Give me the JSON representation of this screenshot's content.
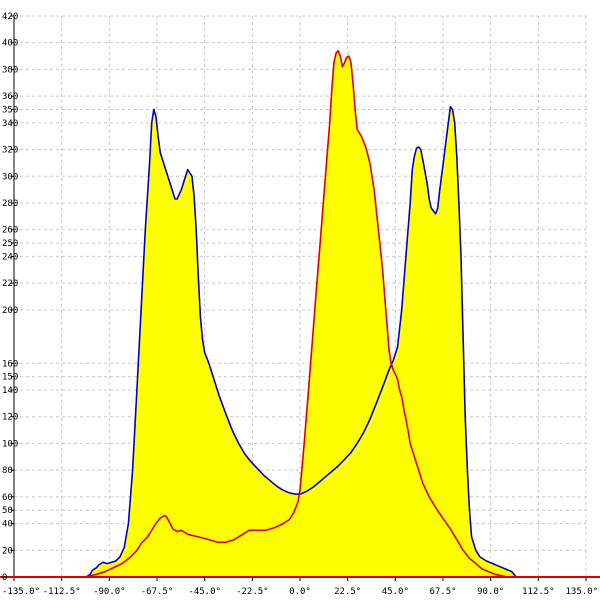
{
  "chart_data": {
    "type": "area",
    "title": "",
    "xlabel": "",
    "ylabel": "",
    "xlim": [
      -135,
      135
    ],
    "ylim": [
      0,
      420
    ],
    "grid": true,
    "x_ticks": [
      -135,
      -112.5,
      -90,
      -67.5,
      -45,
      -22.5,
      0,
      22.5,
      45,
      67.5,
      90,
      112.5,
      135
    ],
    "x_tick_labels": [
      "-135.0°",
      "-112.5°",
      "-90.0°",
      "-67.5°",
      "-45.0°",
      "-22.5°",
      "0.0°",
      "22.5°",
      "45.0°",
      "67.5°",
      "90.0°",
      "112.5°",
      "135.0°"
    ],
    "y_ticks": [
      20,
      40,
      50,
      60,
      80,
      100,
      120,
      140,
      150,
      160,
      200,
      220,
      240,
      250,
      260,
      280,
      300,
      320,
      340,
      350,
      360,
      380,
      400,
      420
    ],
    "colors": {
      "fill": "#ffff00",
      "blue_line": "#0000cc",
      "red_line": "#e00000",
      "grid": "#c8c8c8",
      "axis_x": "#e00000"
    },
    "series": [
      {
        "color": "#0000cc",
        "filled": true,
        "points": [
          [
            -101,
            0
          ],
          [
            -99,
            2
          ],
          [
            -98,
            5
          ],
          [
            -96,
            7
          ],
          [
            -95,
            9
          ],
          [
            -93,
            11
          ],
          [
            -91,
            10
          ],
          [
            -89,
            11
          ],
          [
            -87,
            12
          ],
          [
            -85,
            15
          ],
          [
            -83,
            22
          ],
          [
            -81,
            40
          ],
          [
            -79,
            80
          ],
          [
            -77,
            140
          ],
          [
            -75,
            200
          ],
          [
            -73,
            260
          ],
          [
            -71,
            310
          ],
          [
            -70,
            340
          ],
          [
            -69,
            350
          ],
          [
            -68,
            345
          ],
          [
            -67,
            330
          ],
          [
            -66,
            318
          ],
          [
            -64,
            308
          ],
          [
            -62,
            298
          ],
          [
            -60,
            288
          ],
          [
            -59,
            283
          ],
          [
            -58,
            283
          ],
          [
            -56,
            290
          ],
          [
            -54,
            300
          ],
          [
            -53,
            305
          ],
          [
            -51,
            300
          ],
          [
            -50,
            285
          ],
          [
            -49,
            260
          ],
          [
            -48,
            225
          ],
          [
            -47,
            195
          ],
          [
            -46,
            178
          ],
          [
            -45,
            168
          ],
          [
            -43,
            160
          ],
          [
            -41,
            150
          ],
          [
            -38,
            135
          ],
          [
            -35,
            122
          ],
          [
            -32,
            110
          ],
          [
            -29,
            100
          ],
          [
            -26,
            92
          ],
          [
            -23,
            86
          ],
          [
            -20,
            81
          ],
          [
            -17,
            76
          ],
          [
            -14,
            72
          ],
          [
            -11,
            68
          ],
          [
            -8,
            65
          ],
          [
            -5,
            63
          ],
          [
            -2,
            62
          ],
          [
            0,
            62
          ],
          [
            3,
            64
          ],
          [
            6,
            67
          ],
          [
            9,
            71
          ],
          [
            12,
            75
          ],
          [
            15,
            79
          ],
          [
            18,
            83
          ],
          [
            21,
            88
          ],
          [
            24,
            93
          ],
          [
            27,
            100
          ],
          [
            30,
            108
          ],
          [
            33,
            118
          ],
          [
            36,
            130
          ],
          [
            39,
            142
          ],
          [
            42,
            155
          ],
          [
            44,
            162
          ],
          [
            46,
            172
          ],
          [
            48,
            200
          ],
          [
            50,
            240
          ],
          [
            52,
            280
          ],
          [
            53,
            305
          ],
          [
            54,
            315
          ],
          [
            55,
            321
          ],
          [
            56,
            322
          ],
          [
            57,
            320
          ],
          [
            58,
            312
          ],
          [
            60,
            295
          ],
          [
            61,
            283
          ],
          [
            62,
            276
          ],
          [
            64,
            272
          ],
          [
            65,
            276
          ],
          [
            66,
            290
          ],
          [
            68,
            315
          ],
          [
            70,
            340
          ],
          [
            71,
            352
          ],
          [
            72,
            350
          ],
          [
            73,
            340
          ],
          [
            74,
            315
          ],
          [
            75,
            280
          ],
          [
            76,
            240
          ],
          [
            77,
            180
          ],
          [
            78,
            120
          ],
          [
            79,
            80
          ],
          [
            80,
            50
          ],
          [
            81,
            30
          ],
          [
            83,
            20
          ],
          [
            85,
            15
          ],
          [
            88,
            12
          ],
          [
            91,
            10
          ],
          [
            94,
            8
          ],
          [
            97,
            6
          ],
          [
            100,
            4
          ],
          [
            102,
            0
          ]
        ]
      },
      {
        "color": "#e00000",
        "filled": true,
        "points": [
          [
            -101,
            0
          ],
          [
            -96,
            2
          ],
          [
            -92,
            4
          ],
          [
            -88,
            7
          ],
          [
            -84,
            10
          ],
          [
            -80,
            15
          ],
          [
            -77,
            20
          ],
          [
            -75,
            25
          ],
          [
            -72,
            30
          ],
          [
            -70,
            35
          ],
          [
            -68,
            40
          ],
          [
            -66,
            44
          ],
          [
            -64,
            46
          ],
          [
            -63,
            45
          ],
          [
            -62,
            42
          ],
          [
            -60,
            36
          ],
          [
            -58,
            34
          ],
          [
            -56,
            35
          ],
          [
            -53,
            32
          ],
          [
            -48,
            30
          ],
          [
            -43,
            28
          ],
          [
            -39,
            26
          ],
          [
            -35,
            26
          ],
          [
            -31,
            28
          ],
          [
            -27,
            32
          ],
          [
            -24,
            35
          ],
          [
            -20,
            35
          ],
          [
            -16,
            35
          ],
          [
            -12,
            37
          ],
          [
            -8,
            40
          ],
          [
            -5,
            43
          ],
          [
            -3,
            48
          ],
          [
            -1,
            56
          ],
          [
            0,
            65
          ],
          [
            2,
            100
          ],
          [
            4,
            140
          ],
          [
            6,
            180
          ],
          [
            8,
            220
          ],
          [
            10,
            260
          ],
          [
            12,
            300
          ],
          [
            14,
            340
          ],
          [
            15,
            365
          ],
          [
            16,
            385
          ],
          [
            17,
            392
          ],
          [
            18,
            394
          ],
          [
            19,
            390
          ],
          [
            20,
            382
          ],
          [
            21,
            385
          ],
          [
            22,
            389
          ],
          [
            23,
            390
          ],
          [
            24,
            386
          ],
          [
            25,
            370
          ],
          [
            26,
            350
          ],
          [
            27,
            335
          ],
          [
            29,
            330
          ],
          [
            31,
            322
          ],
          [
            33,
            310
          ],
          [
            35,
            290
          ],
          [
            37,
            260
          ],
          [
            39,
            230
          ],
          [
            40,
            210
          ],
          [
            41,
            190
          ],
          [
            42,
            170
          ],
          [
            43,
            160
          ],
          [
            44,
            155
          ],
          [
            45,
            152
          ],
          [
            46,
            148
          ],
          [
            47,
            140
          ],
          [
            48,
            135
          ],
          [
            49,
            126
          ],
          [
            50,
            118
          ],
          [
            51,
            110
          ],
          [
            52,
            100
          ],
          [
            54,
            90
          ],
          [
            56,
            80
          ],
          [
            58,
            70
          ],
          [
            61,
            60
          ],
          [
            64,
            52
          ],
          [
            67,
            45
          ],
          [
            71,
            36
          ],
          [
            74,
            28
          ],
          [
            77,
            20
          ],
          [
            80,
            14
          ],
          [
            83,
            10
          ],
          [
            86,
            6
          ],
          [
            89,
            4
          ],
          [
            92,
            2
          ],
          [
            95,
            1
          ],
          [
            98,
            0
          ]
        ]
      }
    ]
  }
}
